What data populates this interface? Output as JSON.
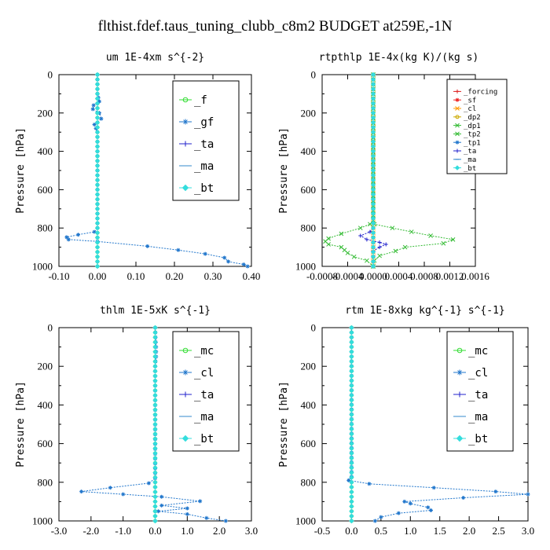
{
  "figure": {
    "title": "flthist.fdef.taus_tuning_clubb_c8m2  BUDGET at259E,-1N"
  },
  "chart_data": [
    {
      "type": "line",
      "title": "um  1E-4xm s^{-2}",
      "ylabel": "Pressure [hPa]",
      "xlim": [
        -0.1,
        0.4
      ],
      "ylim": [
        1000,
        0
      ],
      "xticks": [
        -0.1,
        0.0,
        0.1,
        0.2,
        0.3,
        0.4
      ],
      "xtick_labels": [
        "-0.10",
        "0.00",
        "0.10",
        "0.20",
        "0.30",
        "0.40"
      ],
      "yticks": [
        0,
        200,
        400,
        600,
        800,
        1000
      ],
      "legend": "top-right",
      "series": [
        {
          "name": "_f",
          "color": "#33dd33",
          "marker": "circle",
          "points": [
            [
              0,
              0
            ],
            [
              0,
              200
            ],
            [
              0,
              400
            ],
            [
              0,
              600
            ],
            [
              0,
              800
            ],
            [
              0,
              1000
            ]
          ]
        },
        {
          "name": "_gf",
          "color": "#2277cc",
          "marker": "star",
          "points": [
            [
              0,
              0
            ],
            [
              0,
              100
            ],
            [
              0.005,
              140
            ],
            [
              -0.01,
              160
            ],
            [
              -0.012,
              180
            ],
            [
              0.005,
              200
            ],
            [
              0.01,
              230
            ],
            [
              -0.008,
              260
            ],
            [
              0,
              300
            ],
            [
              0,
              800
            ],
            [
              -0.008,
              820
            ],
            [
              -0.05,
              835
            ],
            [
              -0.08,
              848
            ],
            [
              -0.075,
              860
            ],
            [
              0.0,
              870
            ],
            [
              0.13,
              895
            ],
            [
              0.21,
              915
            ],
            [
              0.28,
              935
            ],
            [
              0.33,
              955
            ],
            [
              0.34,
              975
            ],
            [
              0.38,
              990
            ],
            [
              0.39,
              1000
            ]
          ]
        },
        {
          "name": "_ta",
          "color": "#2222cc",
          "marker": "plus",
          "points": [
            [
              0,
              0
            ],
            [
              0,
              1000
            ]
          ]
        },
        {
          "name": "_ma",
          "color": "#3388cc",
          "marker": "dash",
          "points": [
            [
              0,
              0
            ],
            [
              0,
              1000
            ]
          ]
        },
        {
          "name": "_bt",
          "color": "#33dddd",
          "marker": "diamond",
          "points": [
            [
              0,
              0
            ],
            [
              0,
              1000
            ]
          ]
        }
      ]
    },
    {
      "type": "line",
      "title": "rtpthlp  1E-4x(kg K)/(kg s)",
      "ylabel": "Pressure [hPa]",
      "xlim": [
        -0.0008,
        0.0016
      ],
      "ylim": [
        1000,
        0
      ],
      "xticks": [
        -0.0008,
        -0.0004,
        0.0,
        0.0004,
        0.0008,
        0.0012,
        0.0016
      ],
      "xtick_labels": [
        "-0.0008",
        "-0.0004",
        "0.0000",
        "0.0004",
        "0.0008",
        "0.0012",
        "0.0016"
      ],
      "yticks": [
        0,
        200,
        400,
        600,
        800,
        1000
      ],
      "legend": "top-right",
      "series": [
        {
          "name": "_forcing",
          "color": "#dd2222",
          "marker": "plus",
          "points": [
            [
              0,
              0
            ],
            [
              0,
              1000
            ]
          ]
        },
        {
          "name": "_sf",
          "color": "#ee2222",
          "marker": "star",
          "points": [
            [
              0,
              0
            ],
            [
              0,
              1000
            ]
          ]
        },
        {
          "name": "_cl",
          "color": "#ff9900",
          "marker": "cross",
          "points": [
            [
              0,
              0
            ],
            [
              0,
              1000
            ]
          ]
        },
        {
          "name": "_dp2",
          "color": "#ccaa00",
          "marker": "circle",
          "points": [
            [
              0,
              0
            ],
            [
              0,
              1000
            ]
          ]
        },
        {
          "name": "_dp1",
          "color": "#33bb33",
          "marker": "cross",
          "points": [
            [
              0,
              0
            ],
            [
              0,
              760
            ],
            [
              2e-05,
              780
            ],
            [
              0.0003,
              800
            ],
            [
              0.0006,
              820
            ],
            [
              0.0009,
              840
            ],
            [
              0.00125,
              860
            ],
            [
              0.0011,
              880
            ],
            [
              0.0005,
              900
            ],
            [
              0.00035,
              920
            ],
            [
              0.0001,
              945
            ],
            [
              2e-05,
              970
            ],
            [
              0,
              1000
            ]
          ]
        },
        {
          "name": "_tp2",
          "color": "#33bb33",
          "marker": "cross",
          "points": [
            [
              0,
              0
            ],
            [
              0,
              760
            ],
            [
              -5e-05,
              780
            ],
            [
              -0.0002,
              800
            ],
            [
              -0.0005,
              830
            ],
            [
              -0.0007,
              855
            ],
            [
              -0.00075,
              870
            ],
            [
              -0.0007,
              885
            ],
            [
              -0.0005,
              900
            ],
            [
              -0.00045,
              915
            ],
            [
              -0.0004,
              930
            ],
            [
              -0.0003,
              950
            ],
            [
              -0.0001,
              970
            ],
            [
              0,
              1000
            ]
          ]
        },
        {
          "name": "_tp1",
          "color": "#2277cc",
          "marker": "star",
          "points": [
            [
              0,
              0
            ],
            [
              0,
              1000
            ]
          ]
        },
        {
          "name": "_ta",
          "color": "#2222cc",
          "marker": "plus",
          "points": [
            [
              0,
              0
            ],
            [
              0,
              800
            ],
            [
              -5e-05,
              820
            ],
            [
              -0.0002,
              840
            ],
            [
              -0.0001,
              860
            ],
            [
              0.0001,
              875
            ],
            [
              0.0002,
              885
            ],
            [
              0.0001,
              900
            ],
            [
              0,
              920
            ],
            [
              0,
              1000
            ]
          ]
        },
        {
          "name": "_ma",
          "color": "#3388cc",
          "marker": "dash",
          "points": [
            [
              0,
              0
            ],
            [
              0,
              1000
            ]
          ]
        },
        {
          "name": "_bt",
          "color": "#33dddd",
          "marker": "diamond",
          "points": [
            [
              0,
              0
            ],
            [
              0,
              1000
            ]
          ]
        }
      ]
    },
    {
      "type": "line",
      "title": "thlm  1E-5xK s^{-1}",
      "ylabel": "Pressure [hPa]",
      "xlim": [
        -3.0,
        3.0
      ],
      "ylim": [
        1000,
        0
      ],
      "xticks": [
        -3.0,
        -2.0,
        -1.0,
        0.0,
        1.0,
        2.0,
        3.0
      ],
      "xtick_labels": [
        "-3.0",
        "-2.0",
        "-1.0",
        "0.0",
        "1.0",
        "2.0",
        "3.0"
      ],
      "yticks": [
        0,
        200,
        400,
        600,
        800,
        1000
      ],
      "legend": "top-right",
      "series": [
        {
          "name": "_mc",
          "color": "#33dd33",
          "marker": "circle",
          "points": [
            [
              0,
              0
            ],
            [
              0,
              1000
            ]
          ]
        },
        {
          "name": "_cl",
          "color": "#2277cc",
          "marker": "star",
          "points": [
            [
              0,
              0
            ],
            [
              0.03,
              100
            ],
            [
              0.03,
              150
            ],
            [
              0,
              200
            ],
            [
              0,
              780
            ],
            [
              -0.2,
              805
            ],
            [
              -1.4,
              828
            ],
            [
              -2.3,
              848
            ],
            [
              -1.0,
              862
            ],
            [
              0.2,
              875
            ],
            [
              1.4,
              898
            ],
            [
              0.2,
              920
            ],
            [
              1.0,
              935
            ],
            [
              0.1,
              950
            ],
            [
              1.0,
              965
            ],
            [
              1.6,
              985
            ],
            [
              2.2,
              1000
            ]
          ]
        },
        {
          "name": "_ta",
          "color": "#2222cc",
          "marker": "plus",
          "points": [
            [
              0,
              0
            ],
            [
              0,
              1000
            ]
          ]
        },
        {
          "name": "_ma",
          "color": "#3388cc",
          "marker": "dash",
          "points": [
            [
              0,
              0
            ],
            [
              0,
              1000
            ]
          ]
        },
        {
          "name": "_bt",
          "color": "#33dddd",
          "marker": "diamond",
          "points": [
            [
              0,
              0
            ],
            [
              0,
              1000
            ]
          ]
        }
      ]
    },
    {
      "type": "line",
      "title": "rtm  1E-8xkg kg^{-1} s^{-1}",
      "ylabel": "Pressure [hPa]",
      "xlim": [
        -0.5,
        3.0
      ],
      "ylim": [
        1000,
        0
      ],
      "xticks": [
        -0.5,
        0.0,
        0.5,
        1.0,
        1.5,
        2.0,
        2.5,
        3.0
      ],
      "xtick_labels": [
        "-0.5",
        "0.0",
        "0.5",
        "1.0",
        "1.5",
        "2.0",
        "2.5",
        "3.0"
      ],
      "yticks": [
        0,
        200,
        400,
        600,
        800,
        1000
      ],
      "legend": "top-right",
      "series": [
        {
          "name": "_mc",
          "color": "#33dd33",
          "marker": "circle",
          "points": [
            [
              0,
              0
            ],
            [
              0,
              1000
            ]
          ]
        },
        {
          "name": "_cl",
          "color": "#2277cc",
          "marker": "star",
          "points": [
            [
              0,
              0
            ],
            [
              0,
              770
            ],
            [
              -0.05,
              790
            ],
            [
              0.3,
              808
            ],
            [
              1.4,
              828
            ],
            [
              2.45,
              848
            ],
            [
              3.0,
              862
            ],
            [
              1.9,
              880
            ],
            [
              0.9,
              900
            ],
            [
              1.0,
              910
            ],
            [
              1.3,
              930
            ],
            [
              1.35,
              945
            ],
            [
              0.8,
              960
            ],
            [
              0.5,
              980
            ],
            [
              0.4,
              1000
            ]
          ]
        },
        {
          "name": "_ta",
          "color": "#2222cc",
          "marker": "plus",
          "points": [
            [
              0,
              0
            ],
            [
              0,
              1000
            ]
          ]
        },
        {
          "name": "_ma",
          "color": "#3388cc",
          "marker": "dash",
          "points": [
            [
              0,
              0
            ],
            [
              0,
              1000
            ]
          ]
        },
        {
          "name": "_bt",
          "color": "#33dddd",
          "marker": "diamond",
          "points": [
            [
              0,
              0
            ],
            [
              0,
              1000
            ]
          ]
        }
      ]
    }
  ]
}
